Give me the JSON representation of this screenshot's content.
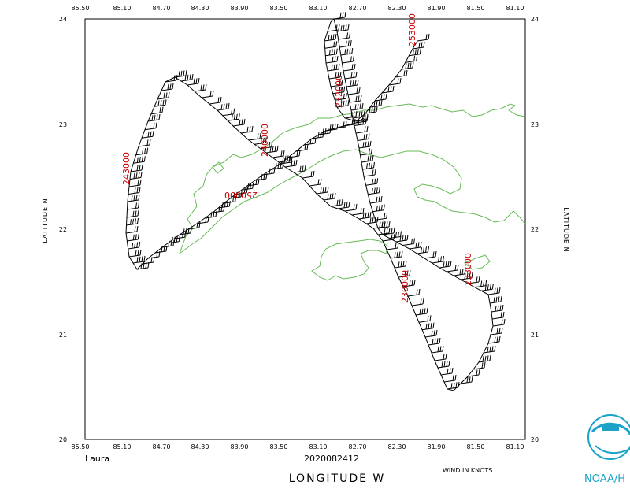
{
  "lon_ticks": [
    "85.50",
    "85.10",
    "84.70",
    "84.30",
    "83.90",
    "83.50",
    "83.10",
    "82.70",
    "82.30",
    "81.90",
    "81.50",
    "81.10"
  ],
  "lat_ticks": [
    "20",
    "21",
    "22",
    "23",
    "24"
  ],
  "axis": {
    "ylabel_left": "LATITUDE   N",
    "ylabel_right": "LATITUDE   N",
    "xlabel": "LONGITUDE   W",
    "wind_units": "WIND IN KNOTS"
  },
  "storm": {
    "name": "Laura",
    "datetime": "2020082412"
  },
  "noaa_label": "NOAA/H",
  "time_labels": [
    "253000",
    "232000",
    "240000",
    "243000",
    "250000",
    "233000",
    "230000"
  ],
  "colors": {
    "coastline": "#66bb55",
    "time_label": "#cc0000",
    "noaa": "#1aa3c7",
    "track": "#000000"
  }
}
